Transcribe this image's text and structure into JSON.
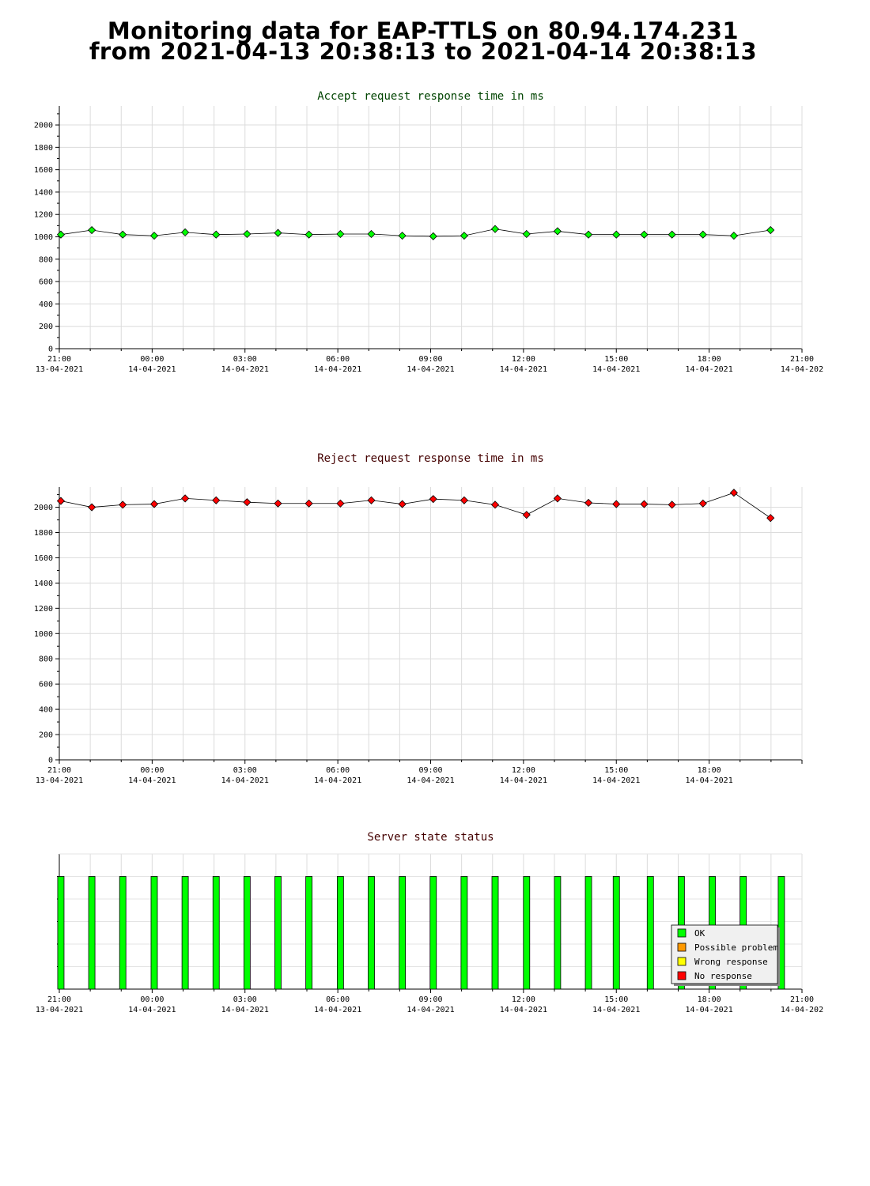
{
  "page": {
    "title_line1": "Monitoring data for EAP-TTLS on 80.94.174.231",
    "title_line2": "from 2021-04-13 20:38:13 to 2021-04-14 20:38:13"
  },
  "chart_data": [
    {
      "type": "line",
      "title": "Accept request response time in ms",
      "title_color": "#004400",
      "series": [
        {
          "color": "#00ff00",
          "points": [
            [
              "2021-04-13 21:03",
              1020
            ],
            [
              "2021-04-13 22:03",
              1060
            ],
            [
              "2021-04-13 23:03",
              1020
            ],
            [
              "2021-04-14 00:04",
              1010
            ],
            [
              "2021-04-14 01:04",
              1040
            ],
            [
              "2021-04-14 02:04",
              1020
            ],
            [
              "2021-04-14 03:04",
              1025
            ],
            [
              "2021-04-14 04:04",
              1035
            ],
            [
              "2021-04-14 05:04",
              1020
            ],
            [
              "2021-04-14 06:05",
              1025
            ],
            [
              "2021-04-14 07:05",
              1025
            ],
            [
              "2021-04-14 08:05",
              1010
            ],
            [
              "2021-04-14 09:05",
              1005
            ],
            [
              "2021-04-14 10:05",
              1010
            ],
            [
              "2021-04-14 11:05",
              1070
            ],
            [
              "2021-04-14 12:06",
              1025
            ],
            [
              "2021-04-14 13:06",
              1050
            ],
            [
              "2021-04-14 14:06",
              1020
            ],
            [
              "2021-04-14 15:00",
              1020
            ],
            [
              "2021-04-14 15:54",
              1020
            ],
            [
              "2021-04-14 16:48",
              1020
            ],
            [
              "2021-04-14 17:48",
              1020
            ],
            [
              "2021-04-14 18:48",
              1010
            ],
            [
              "2021-04-14 19:59",
              1060
            ]
          ]
        }
      ],
      "ylim": [
        0,
        2170
      ],
      "yticks": [
        0,
        200,
        400,
        600,
        800,
        1000,
        1200,
        1400,
        1600,
        1800,
        2000
      ],
      "x_range": [
        "2021-04-13 21:00",
        "2021-04-14 21:00"
      ],
      "xticks": [
        {
          "time": "21:00",
          "date": "13-04-2021"
        },
        {
          "time": "00:00",
          "date": "14-04-2021"
        },
        {
          "time": "03:00",
          "date": "14-04-2021"
        },
        {
          "time": "06:00",
          "date": "14-04-2021"
        },
        {
          "time": "09:00",
          "date": "14-04-2021"
        },
        {
          "time": "12:00",
          "date": "14-04-2021"
        },
        {
          "time": "15:00",
          "date": "14-04-2021"
        },
        {
          "time": "18:00",
          "date": "14-04-2021"
        },
        {
          "time": "21:00",
          "date": "14-04-202"
        }
      ],
      "grid": true
    },
    {
      "type": "line",
      "title": "Reject request response time in ms",
      "title_color": "#440000",
      "series": [
        {
          "color": "#ff0000",
          "points": [
            [
              "2021-04-13 21:03",
              2050
            ],
            [
              "2021-04-13 22:03",
              2000
            ],
            [
              "2021-04-13 23:03",
              2020
            ],
            [
              "2021-04-14 00:04",
              2025
            ],
            [
              "2021-04-14 01:04",
              2070
            ],
            [
              "2021-04-14 02:04",
              2055
            ],
            [
              "2021-04-14 03:04",
              2040
            ],
            [
              "2021-04-14 04:04",
              2030
            ],
            [
              "2021-04-14 05:04",
              2030
            ],
            [
              "2021-04-14 06:05",
              2030
            ],
            [
              "2021-04-14 07:05",
              2055
            ],
            [
              "2021-04-14 08:05",
              2025
            ],
            [
              "2021-04-14 09:05",
              2065
            ],
            [
              "2021-04-14 10:05",
              2055
            ],
            [
              "2021-04-14 11:05",
              2020
            ],
            [
              "2021-04-14 12:06",
              1940
            ],
            [
              "2021-04-14 13:06",
              2070
            ],
            [
              "2021-04-14 14:06",
              2035
            ],
            [
              "2021-04-14 15:00",
              2025
            ],
            [
              "2021-04-14 15:54",
              2025
            ],
            [
              "2021-04-14 16:48",
              2020
            ],
            [
              "2021-04-14 17:48",
              2030
            ],
            [
              "2021-04-14 18:48",
              2115
            ],
            [
              "2021-04-14 19:59",
              1915
            ]
          ]
        }
      ],
      "ylim": [
        0,
        2160
      ],
      "yticks": [
        0,
        200,
        400,
        600,
        800,
        1000,
        1200,
        1400,
        1600,
        1800,
        2000
      ],
      "x_range": [
        "2021-04-13 21:00",
        "2021-04-14 21:00"
      ],
      "xticks": [
        {
          "time": "21:00",
          "date": "13-04-2021"
        },
        {
          "time": "00:00",
          "date": "14-04-2021"
        },
        {
          "time": "03:00",
          "date": "14-04-2021"
        },
        {
          "time": "06:00",
          "date": "14-04-2021"
        },
        {
          "time": "09:00",
          "date": "14-04-2021"
        },
        {
          "time": "12:00",
          "date": "14-04-2021"
        },
        {
          "time": "15:00",
          "date": "14-04-2021"
        },
        {
          "time": "18:00",
          "date": "14-04-2021"
        }
      ],
      "grid": true
    },
    {
      "type": "bar",
      "title": "Server state status",
      "title_color": "#440000",
      "status_color": "#00ff00",
      "status_times": [
        "2021-04-13 21:03",
        "2021-04-13 22:03",
        "2021-04-13 23:03",
        "2021-04-14 00:04",
        "2021-04-14 01:04",
        "2021-04-14 02:04",
        "2021-04-14 03:04",
        "2021-04-14 04:04",
        "2021-04-14 05:04",
        "2021-04-14 06:05",
        "2021-04-14 07:05",
        "2021-04-14 08:05",
        "2021-04-14 09:05",
        "2021-04-14 10:05",
        "2021-04-14 11:05",
        "2021-04-14 12:06",
        "2021-04-14 13:06",
        "2021-04-14 14:06",
        "2021-04-14 15:00",
        "2021-04-14 16:06",
        "2021-04-14 17:06",
        "2021-04-14 18:06",
        "2021-04-14 19:06",
        "2021-04-14 20:20"
      ],
      "status": "OK",
      "x_range": [
        "2021-04-13 21:00",
        "2021-04-14 21:00"
      ],
      "xticks": [
        {
          "time": "21:00",
          "date": "13-04-2021"
        },
        {
          "time": "00:00",
          "date": "14-04-2021"
        },
        {
          "time": "03:00",
          "date": "14-04-2021"
        },
        {
          "time": "06:00",
          "date": "14-04-2021"
        },
        {
          "time": "09:00",
          "date": "14-04-2021"
        },
        {
          "time": "12:00",
          "date": "14-04-2021"
        },
        {
          "time": "15:00",
          "date": "14-04-2021"
        },
        {
          "time": "18:00",
          "date": "14-04-2021"
        },
        {
          "time": "21:00",
          "date": "14-04-202"
        }
      ],
      "legend": [
        {
          "label": "OK",
          "color": "#00ff00"
        },
        {
          "label": "Possible problem",
          "color": "#ff9900"
        },
        {
          "label": "Wrong response",
          "color": "#ffff00"
        },
        {
          "label": "No response",
          "color": "#ff0000"
        }
      ],
      "legend_position": "bottom-right",
      "grid": true
    }
  ]
}
